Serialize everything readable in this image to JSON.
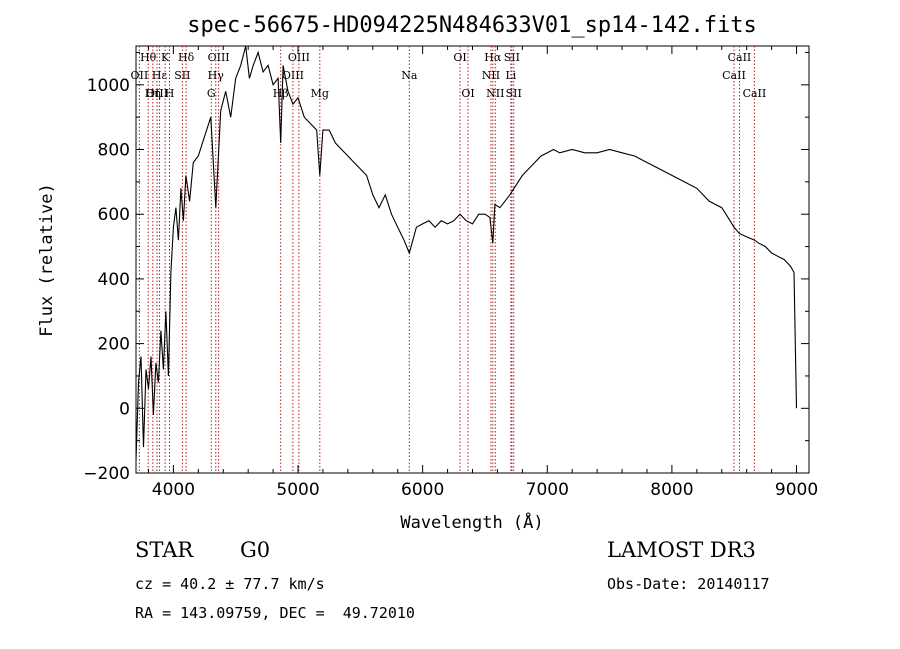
{
  "chart_data": {
    "type": "line",
    "title": "spec-56675-HD094225N484633V01_sp14-142.fits",
    "xlabel": "Wavelength (Å)",
    "ylabel": "Flux (relative)",
    "xlim": [
      3700,
      9100
    ],
    "ylim": [
      -200,
      1120
    ],
    "x_ticks": [
      4000,
      5000,
      6000,
      7000,
      8000,
      9000
    ],
    "y_ticks": [
      -200,
      0,
      200,
      400,
      600,
      800,
      1000
    ],
    "spectral_lines": [
      {
        "name": "Hθ",
        "wavelength": 3798,
        "row": 0
      },
      {
        "name": "OII",
        "wavelength": 3727,
        "row": 1
      },
      {
        "name": "OIII",
        "wavelength": 3869,
        "row": 2
      },
      {
        "name": "Hε",
        "wavelength": 3889,
        "row": 1
      },
      {
        "name": "Hη",
        "wavelength": 3835,
        "row": 2
      },
      {
        "name": "K",
        "wavelength": 3934,
        "row": 0
      },
      {
        "name": "H",
        "wavelength": 3969,
        "row": 2
      },
      {
        "name": "SII",
        "wavelength": 4072,
        "row": 1
      },
      {
        "name": "Hδ",
        "wavelength": 4102,
        "row": 0
      },
      {
        "name": "OIII",
        "wavelength": 4363,
        "row": 0
      },
      {
        "name": "Hγ",
        "wavelength": 4340,
        "row": 1
      },
      {
        "name": "G",
        "wavelength": 4304,
        "row": 2
      },
      {
        "name": "Hβ",
        "wavelength": 4861,
        "row": 2
      },
      {
        "name": "OIII",
        "wavelength": 5007,
        "row": 0
      },
      {
        "name": "OIII",
        "wavelength": 4959,
        "row": 1
      },
      {
        "name": "Mg",
        "wavelength": 5175,
        "row": 2
      },
      {
        "name": "Na",
        "wavelength": 5893,
        "row": 1
      },
      {
        "name": "OI",
        "wavelength": 6300,
        "row": 0
      },
      {
        "name": "OI",
        "wavelength": 6364,
        "row": 2
      },
      {
        "name": "Hα",
        "wavelength": 6563,
        "row": 0
      },
      {
        "name": "SII",
        "wavelength": 6716,
        "row": 0
      },
      {
        "name": "NII",
        "wavelength": 6548,
        "row": 1
      },
      {
        "name": "Li",
        "wavelength": 6708,
        "row": 1
      },
      {
        "name": "NII",
        "wavelength": 6583,
        "row": 2
      },
      {
        "name": "SII",
        "wavelength": 6731,
        "row": 2
      },
      {
        "name": "CaII",
        "wavelength": 8542,
        "row": 0
      },
      {
        "name": "CaII",
        "wavelength": 8498,
        "row": 1
      },
      {
        "name": "CaII",
        "wavelength": 8662,
        "row": 2
      }
    ],
    "series": [
      {
        "name": "flux",
        "x": [
          3700,
          3720,
          3740,
          3760,
          3780,
          3800,
          3820,
          3840,
          3860,
          3880,
          3900,
          3920,
          3940,
          3960,
          3980,
          4000,
          4020,
          4040,
          4060,
          4080,
          4100,
          4130,
          4160,
          4200,
          4250,
          4300,
          4340,
          4380,
          4420,
          4460,
          4500,
          4540,
          4580,
          4610,
          4640,
          4680,
          4720,
          4760,
          4800,
          4840,
          4861,
          4880,
          4920,
          4960,
          5000,
          5050,
          5100,
          5150,
          5175,
          5200,
          5250,
          5300,
          5350,
          5400,
          5450,
          5500,
          5550,
          5600,
          5650,
          5700,
          5750,
          5800,
          5850,
          5893,
          5950,
          6000,
          6050,
          6100,
          6150,
          6200,
          6250,
          6300,
          6350,
          6400,
          6450,
          6500,
          6540,
          6563,
          6580,
          6620,
          6660,
          6700,
          6750,
          6800,
          6850,
          6900,
          6950,
          7000,
          7050,
          7100,
          7200,
          7300,
          7400,
          7500,
          7600,
          7700,
          7800,
          7900,
          8000,
          8100,
          8200,
          8300,
          8400,
          8450,
          8498,
          8542,
          8600,
          8662,
          8700,
          8750,
          8800,
          8850,
          8900,
          8950,
          8980,
          8990,
          9000
        ],
        "y": [
          -160,
          80,
          160,
          -120,
          120,
          60,
          160,
          -20,
          140,
          80,
          240,
          120,
          300,
          100,
          420,
          560,
          620,
          520,
          680,
          580,
          720,
          640,
          760,
          780,
          840,
          900,
          620,
          920,
          980,
          900,
          1020,
          1060,
          1120,
          1020,
          1060,
          1100,
          1040,
          1060,
          1000,
          1020,
          820,
          1060,
          980,
          940,
          960,
          900,
          880,
          860,
          720,
          860,
          860,
          820,
          800,
          780,
          760,
          740,
          720,
          660,
          620,
          660,
          600,
          560,
          520,
          480,
          560,
          570,
          580,
          560,
          580,
          570,
          580,
          600,
          580,
          570,
          600,
          600,
          590,
          510,
          630,
          620,
          640,
          660,
          690,
          720,
          740,
          760,
          780,
          790,
          800,
          790,
          800,
          790,
          790,
          800,
          790,
          780,
          760,
          740,
          720,
          700,
          680,
          640,
          620,
          590,
          560,
          540,
          530,
          520,
          510,
          500,
          480,
          470,
          460,
          440,
          420,
          200,
          0
        ]
      }
    ]
  },
  "info": {
    "object_type": "STAR",
    "subclass": "G0",
    "survey": "LAMOST DR3",
    "redshift": "cz = 40.2 ± 77.7 km/s",
    "obs_date": "Obs-Date: 20140117",
    "coords": "RA = 143.09759, DEC =  49.72010"
  }
}
